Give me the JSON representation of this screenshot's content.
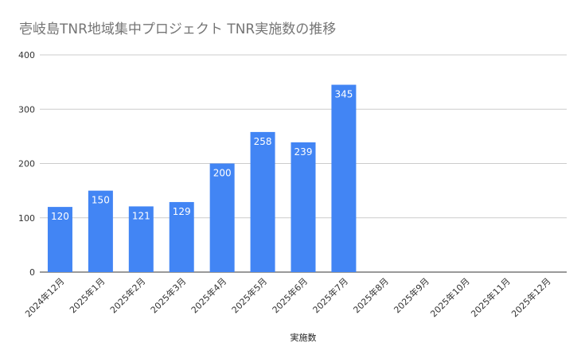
{
  "chart_data": {
    "type": "bar",
    "title": "壱岐島TNR地域集中プロジェクト TNR実施数の推移",
    "xlabel": "実施数",
    "ylabel": "",
    "ylim": [
      0,
      400
    ],
    "yticks": [
      0,
      100,
      200,
      300,
      400
    ],
    "grid": true,
    "legend": "none",
    "bar_color": "#4285f4",
    "categories": [
      "2024年12月",
      "2025年1月",
      "2025年2月",
      "2025年3月",
      "2025年4月",
      "2025年5月",
      "2025年6月",
      "2025年7月",
      "2025年8月",
      "2025年9月",
      "2025年10月",
      "2025年11月",
      "2025年12月"
    ],
    "values": [
      120,
      150,
      121,
      129,
      200,
      258,
      239,
      345,
      null,
      null,
      null,
      null,
      null
    ],
    "data_labels": [
      "120",
      "150",
      "121",
      "129",
      "200",
      "258",
      "239",
      "345",
      "",
      "",
      "",
      "",
      ""
    ]
  }
}
